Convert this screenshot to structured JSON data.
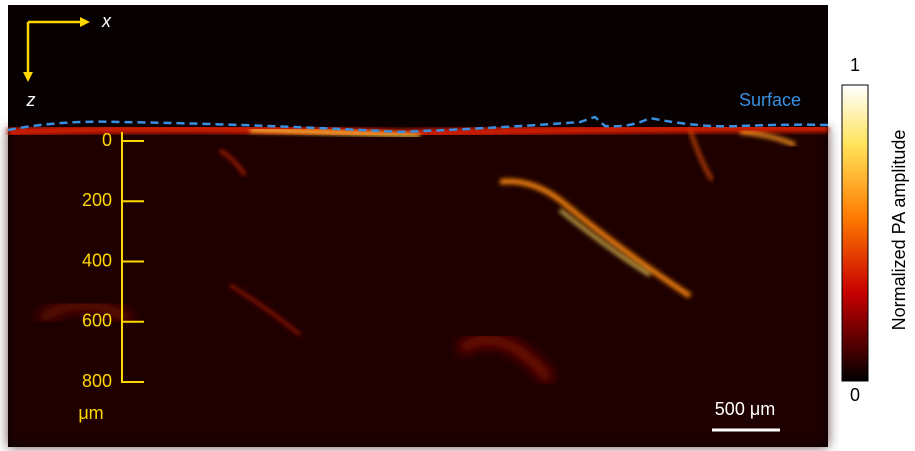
{
  "figure": {
    "axes": {
      "x": "x",
      "z": "z"
    },
    "surface_label": "Surface",
    "depth_ticks": [
      0,
      200,
      400,
      600,
      800
    ],
    "depth_unit": "μm",
    "scale_bar": "500 μm",
    "colorbar": {
      "label": "Normalized PA amplitude",
      "max": 1,
      "min": 0
    }
  }
}
